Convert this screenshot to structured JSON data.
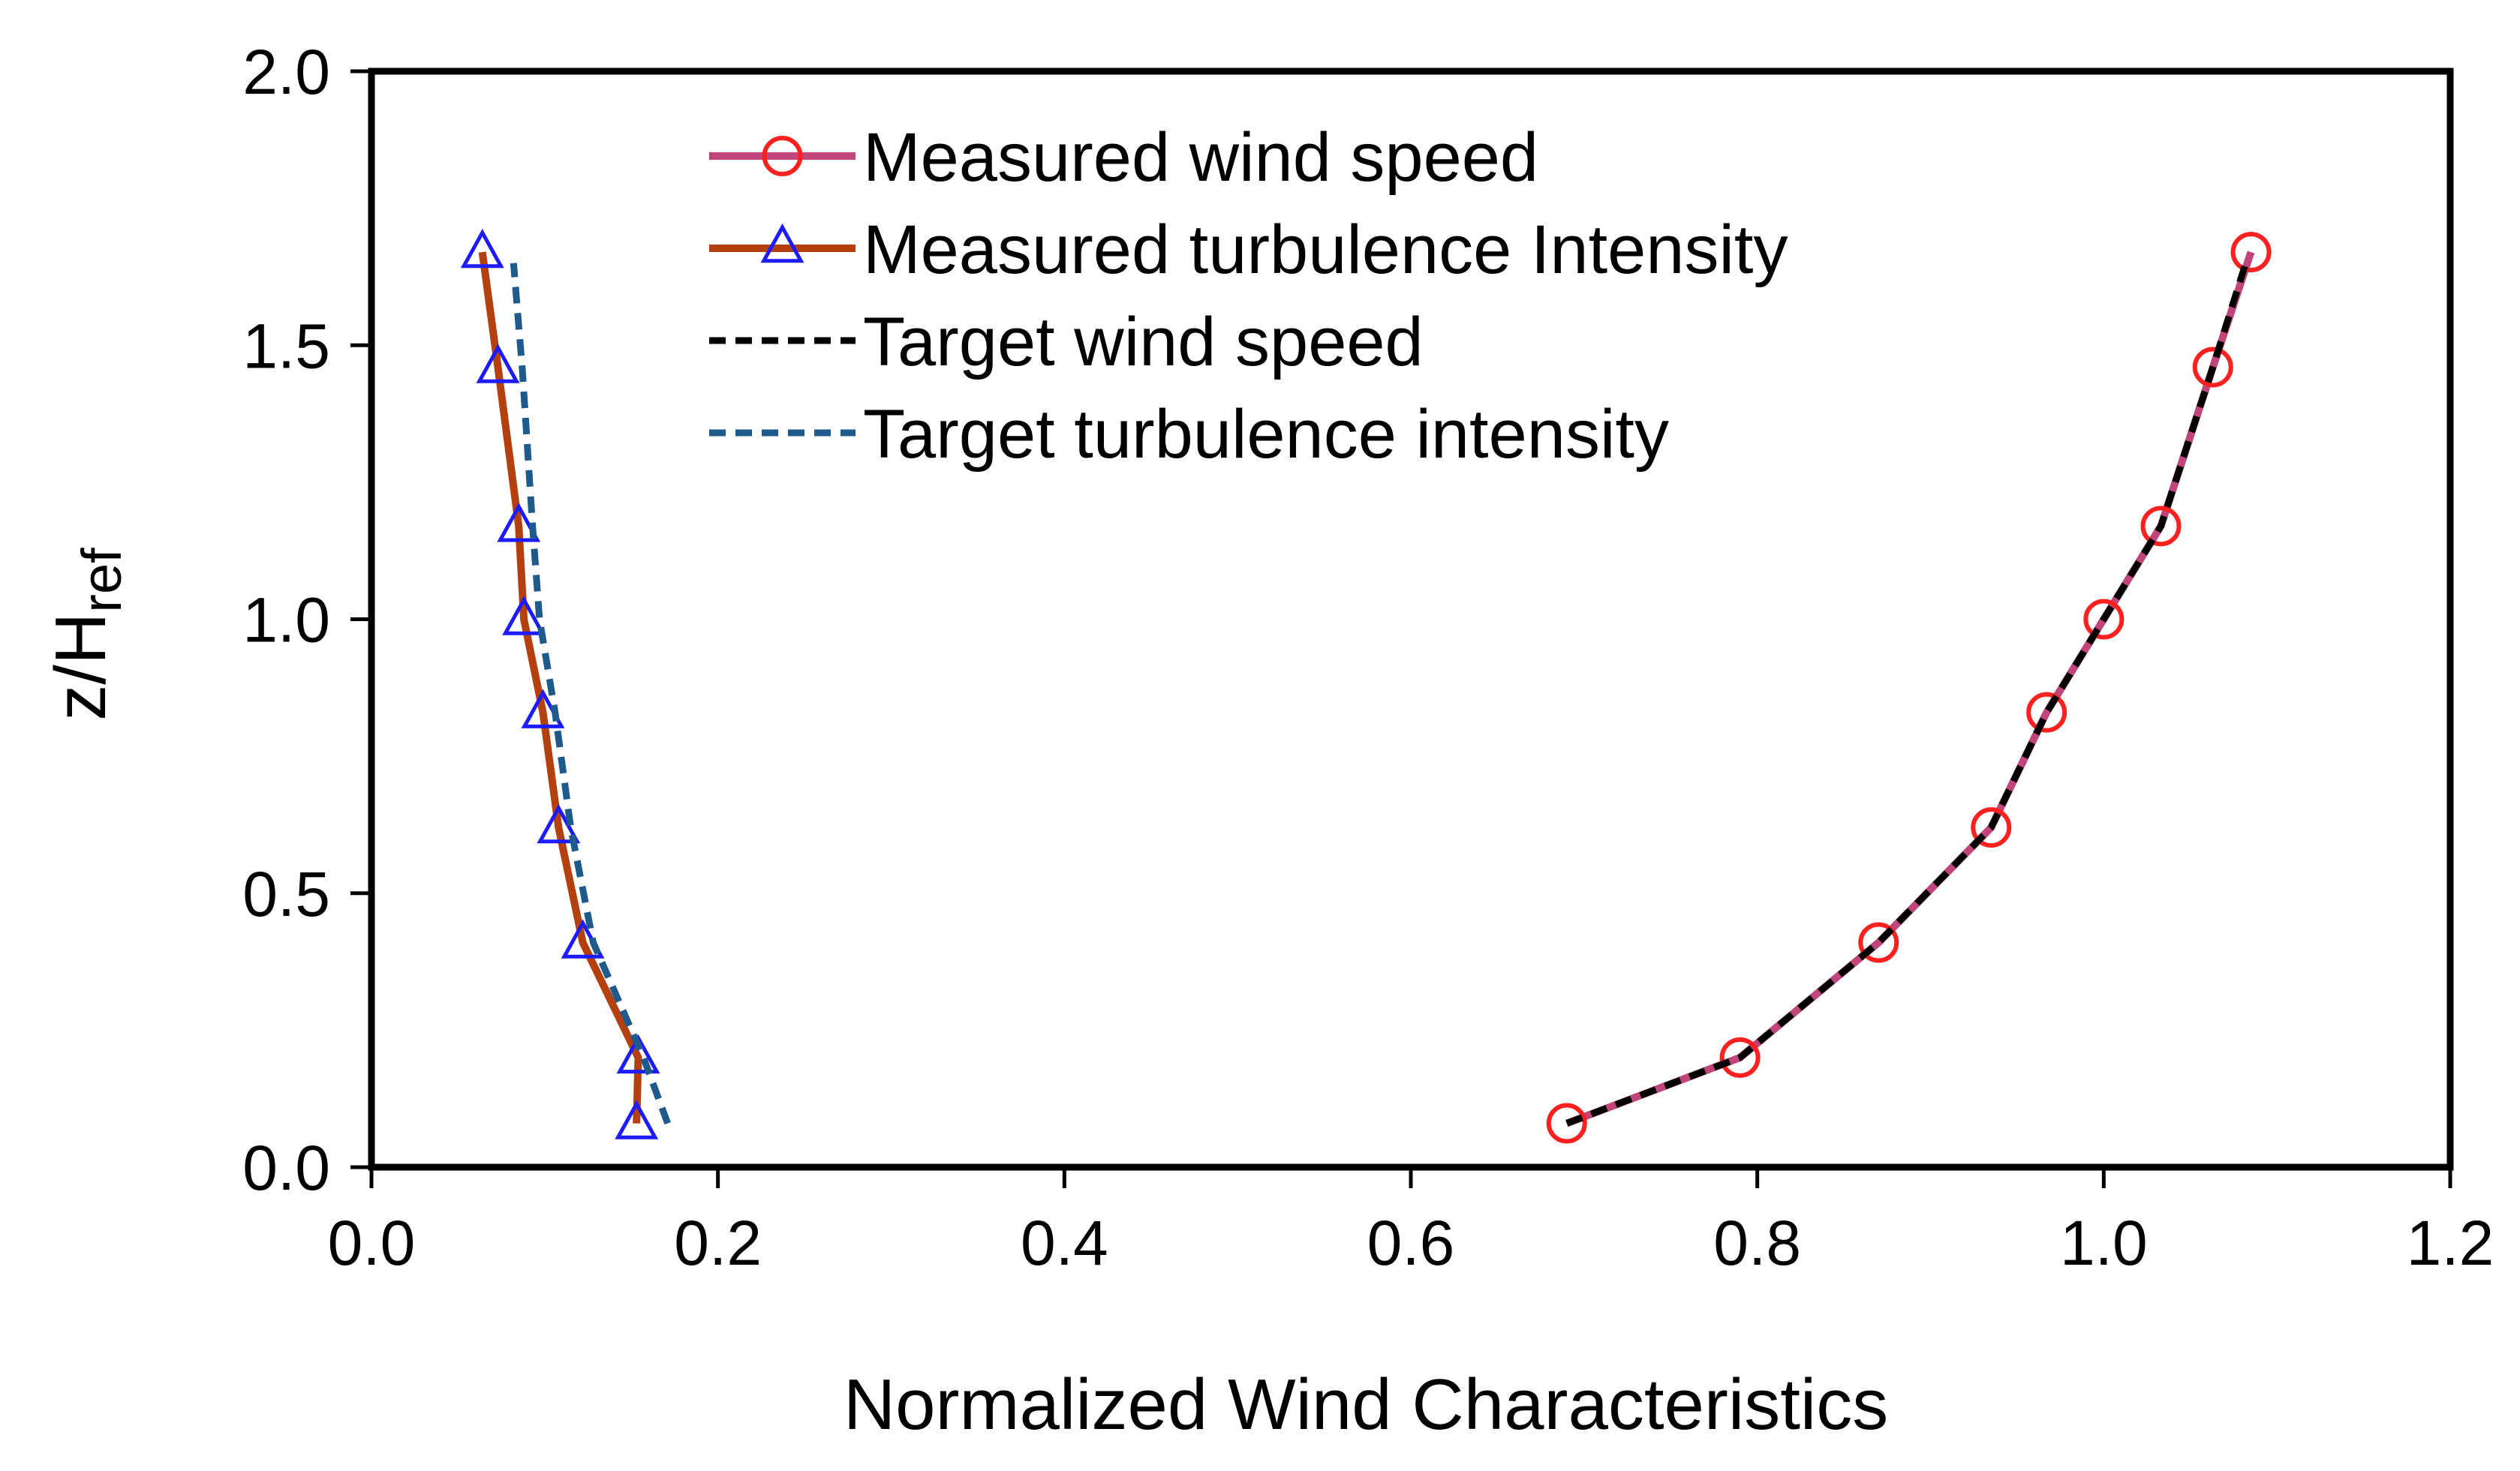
{
  "chart_data": {
    "type": "line",
    "title": "",
    "xlabel": "Normalized Wind Characteristics",
    "ylabel": {
      "base": "z/H",
      "subscript": "ref"
    },
    "xlim": [
      0.0,
      1.2
    ],
    "ylim": [
      0.0,
      2.0
    ],
    "x_ticks": [
      0.0,
      0.2,
      0.4,
      0.6,
      0.8,
      1.0,
      1.2
    ],
    "y_ticks": [
      0.0,
      0.5,
      1.0,
      1.5,
      2.0
    ],
    "x_tick_labels": [
      "0.0",
      "0.2",
      "0.4",
      "0.6",
      "0.8",
      "1.0",
      "1.2"
    ],
    "y_tick_labels": [
      "0.0",
      "0.5",
      "1.0",
      "1.5",
      "2.0"
    ],
    "grid": false,
    "legend_position": "top-center",
    "series": [
      {
        "name": "Measured wind speed",
        "color": "#C0457A",
        "line_style": "solid",
        "marker": "circle",
        "marker_color": "#FF2020",
        "x": [
          0.69,
          0.79,
          0.87,
          0.935,
          0.967,
          1.0,
          1.033,
          1.063,
          1.085
        ],
        "y": [
          0.08,
          0.2,
          0.41,
          0.62,
          0.83,
          1.0,
          1.17,
          1.46,
          1.67
        ]
      },
      {
        "name": "Measured turbulence Intensity",
        "color": "#B5400F",
        "line_style": "solid",
        "marker": "triangle",
        "marker_color": "#1C1CFF",
        "x": [
          0.153,
          0.154,
          0.122,
          0.108,
          0.099,
          0.088,
          0.085,
          0.073,
          0.064
        ],
        "y": [
          0.08,
          0.2,
          0.41,
          0.62,
          0.83,
          1.0,
          1.17,
          1.46,
          1.67
        ]
      },
      {
        "name": "Target wind speed",
        "color": "#000000",
        "line_style": "dashed",
        "marker": "none",
        "x": [
          0.69,
          0.79,
          0.87,
          0.935,
          0.967,
          1.0,
          1.033,
          1.063,
          1.083
        ],
        "y": [
          0.08,
          0.2,
          0.41,
          0.62,
          0.83,
          1.0,
          1.17,
          1.46,
          1.66
        ]
      },
      {
        "name": "Target turbulence intensity",
        "color": "#1F5A8C",
        "line_style": "dashed",
        "marker": "none",
        "x": [
          0.171,
          0.157,
          0.128,
          0.115,
          0.106,
          0.097,
          0.093,
          0.087,
          0.082
        ],
        "y": [
          0.08,
          0.2,
          0.41,
          0.62,
          0.83,
          1.0,
          1.17,
          1.46,
          1.65
        ]
      }
    ]
  }
}
